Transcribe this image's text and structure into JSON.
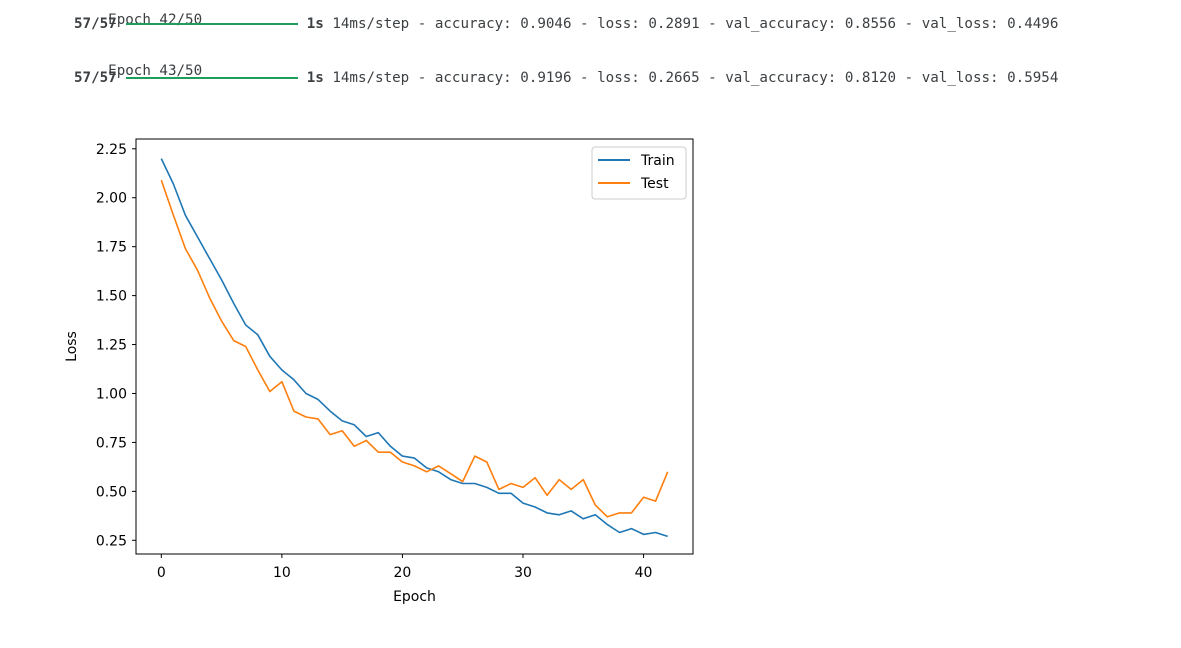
{
  "log": {
    "lines": [
      {
        "kind": "epoch",
        "text": "Epoch 42/50"
      },
      {
        "kind": "progress",
        "steps": "57/57",
        "duration": "1s",
        "metrics": " 14ms/step - accuracy: 0.9046 - loss: 0.2891 - val_accuracy: 0.8556 - val_loss: 0.4496"
      },
      {
        "kind": "epoch",
        "text": "Epoch 43/50"
      },
      {
        "kind": "progress",
        "steps": "57/57",
        "duration": "1s",
        "metrics": " 14ms/step - accuracy: 0.9196 - loss: 0.2665 - val_accuracy: 0.8120 - val_loss: 0.5954"
      }
    ],
    "progress_color": "#1e9e5c"
  },
  "chart_data": {
    "type": "line",
    "title": "",
    "xlabel": "Epoch",
    "ylabel": "Loss",
    "xlim": [
      -2.1,
      44.1
    ],
    "ylim": [
      0.18,
      2.3
    ],
    "xticks": [
      0,
      10,
      20,
      30,
      40
    ],
    "yticks": [
      0.25,
      0.5,
      0.75,
      1.0,
      1.25,
      1.5,
      1.75,
      2.0,
      2.25
    ],
    "grid": false,
    "legend": "upper right",
    "x": [
      0,
      1,
      2,
      3,
      4,
      5,
      6,
      7,
      8,
      9,
      10,
      11,
      12,
      13,
      14,
      15,
      16,
      17,
      18,
      19,
      20,
      21,
      22,
      23,
      24,
      25,
      26,
      27,
      28,
      29,
      30,
      31,
      32,
      33,
      34,
      35,
      36,
      37,
      38,
      39,
      40,
      41,
      42
    ],
    "series": [
      {
        "name": "Train",
        "color": "#1f77b4",
        "values": [
          2.2,
          2.07,
          1.91,
          1.8,
          1.69,
          1.58,
          1.46,
          1.35,
          1.3,
          1.19,
          1.12,
          1.07,
          1.0,
          0.97,
          0.91,
          0.86,
          0.84,
          0.78,
          0.8,
          0.73,
          0.68,
          0.67,
          0.62,
          0.6,
          0.56,
          0.54,
          0.54,
          0.52,
          0.49,
          0.49,
          0.44,
          0.42,
          0.39,
          0.38,
          0.4,
          0.36,
          0.38,
          0.33,
          0.29,
          0.31,
          0.28,
          0.29,
          0.27
        ]
      },
      {
        "name": "Test",
        "color": "#ff7f0e",
        "values": [
          2.09,
          1.91,
          1.74,
          1.63,
          1.49,
          1.37,
          1.27,
          1.24,
          1.12,
          1.01,
          1.06,
          0.91,
          0.88,
          0.87,
          0.79,
          0.81,
          0.73,
          0.76,
          0.7,
          0.7,
          0.65,
          0.63,
          0.6,
          0.63,
          0.59,
          0.55,
          0.68,
          0.65,
          0.51,
          0.54,
          0.52,
          0.57,
          0.48,
          0.56,
          0.51,
          0.56,
          0.43,
          0.37,
          0.39,
          0.39,
          0.47,
          0.45,
          0.6
        ]
      }
    ]
  }
}
